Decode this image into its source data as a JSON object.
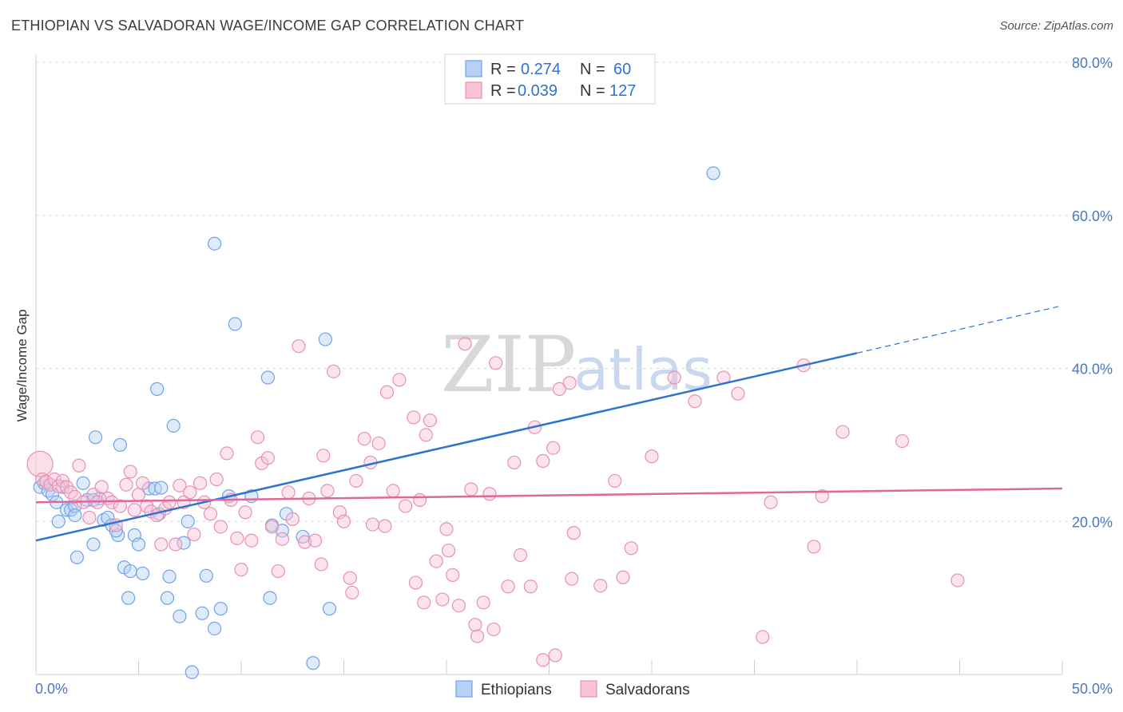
{
  "title": "ETHIOPIAN VS SALVADORAN WAGE/INCOME GAP CORRELATION CHART",
  "source": "Source: ZipAtlas.com",
  "chart_data": {
    "type": "scatter",
    "ylabel": "Wage/Income Gap",
    "xlim": [
      0,
      50
    ],
    "ylim": [
      0,
      80
    ],
    "x_tick_labels": [
      "0.0%",
      "50.0%"
    ],
    "y_ticks": [
      {
        "value": 20,
        "label": "20.0%"
      },
      {
        "value": 40,
        "label": "40.0%"
      },
      {
        "value": 60,
        "label": "60.0%"
      },
      {
        "value": 80,
        "label": "80.0%"
      }
    ],
    "watermark": {
      "zip": "ZIP",
      "atlas": "atlas"
    },
    "legend": [
      {
        "r_label": "R =",
        "r": "0.274",
        "n_label": "N =",
        "n": "60"
      },
      {
        "r_label": "R =",
        "r": "0.039",
        "n_label": "N =",
        "n": "127"
      }
    ],
    "series": [
      {
        "name": "Ethiopians",
        "color": "#6fa3e8",
        "fill": "#b7d0f5",
        "line_color": "#2f73d0",
        "trend": {
          "x0": 0,
          "y0": 17.5,
          "x1": 40,
          "y1": 42.0,
          "dash_to_x": 50,
          "dash_to_y": 48.2
        },
        "points": [
          [
            0.2,
            24.5
          ],
          [
            0.4,
            25
          ],
          [
            0.6,
            24
          ],
          [
            0.8,
            23.5
          ],
          [
            1.0,
            22.5
          ],
          [
            1.1,
            20
          ],
          [
            1.3,
            24.5
          ],
          [
            1.5,
            21.5
          ],
          [
            1.7,
            21.5
          ],
          [
            1.9,
            22
          ],
          [
            2.0,
            15.3
          ],
          [
            2.3,
            25
          ],
          [
            2.5,
            22.8
          ],
          [
            2.8,
            17
          ],
          [
            2.9,
            31
          ],
          [
            3.1,
            23
          ],
          [
            3.3,
            20.2
          ],
          [
            3.5,
            20.5
          ],
          [
            3.7,
            19.5
          ],
          [
            4.0,
            18.2
          ],
          [
            4.1,
            30
          ],
          [
            4.3,
            14
          ],
          [
            4.5,
            10
          ],
          [
            4.6,
            13.5
          ],
          [
            4.8,
            18.2
          ],
          [
            5.0,
            17
          ],
          [
            5.2,
            13.2
          ],
          [
            5.5,
            24.3
          ],
          [
            5.8,
            24.3
          ],
          [
            6.0,
            21
          ],
          [
            6.4,
            10
          ],
          [
            6.5,
            12.8
          ],
          [
            6.7,
            32.5
          ],
          [
            7.0,
            7.6
          ],
          [
            7.2,
            17.2
          ],
          [
            7.4,
            20
          ],
          [
            7.6,
            0.3
          ],
          [
            8.1,
            8
          ],
          [
            8.3,
            12.9
          ],
          [
            8.7,
            6
          ],
          [
            9.0,
            8.6
          ],
          [
            9.4,
            23.3
          ],
          [
            9.7,
            45.8
          ],
          [
            10.5,
            23.3
          ],
          [
            11.4,
            10
          ],
          [
            11.5,
            19.5
          ],
          [
            12.0,
            18.8
          ],
          [
            12.2,
            21
          ],
          [
            13.0,
            18
          ],
          [
            13.5,
            1.5
          ],
          [
            14.1,
            43.8
          ],
          [
            14.3,
            8.6
          ],
          [
            8.7,
            56.3
          ],
          [
            5.9,
            37.3
          ],
          [
            11.3,
            38.8
          ],
          [
            2.8,
            22.8
          ],
          [
            6.1,
            24.4
          ],
          [
            33.0,
            65.5
          ],
          [
            1.9,
            20.8
          ],
          [
            3.9,
            18.8
          ]
        ]
      },
      {
        "name": "Salvadorans",
        "color": "#eb8fb0",
        "fill": "#f7c4d6",
        "line_color": "#e0679a",
        "trend": {
          "x0": 0,
          "y0": 22.5,
          "x1": 50,
          "y1": 24.3
        },
        "points": [
          [
            0.2,
            27.5
          ],
          [
            0.3,
            25.5
          ],
          [
            0.5,
            25.2
          ],
          [
            0.7,
            24.8
          ],
          [
            0.9,
            25.5
          ],
          [
            1.1,
            24.6
          ],
          [
            1.3,
            25.3
          ],
          [
            1.5,
            24.5
          ],
          [
            1.7,
            23.8
          ],
          [
            1.9,
            23.2
          ],
          [
            2.1,
            27.3
          ],
          [
            2.3,
            22.5
          ],
          [
            2.6,
            20.5
          ],
          [
            2.8,
            23.5
          ],
          [
            3.0,
            22.5
          ],
          [
            3.2,
            24.5
          ],
          [
            3.5,
            23
          ],
          [
            3.7,
            22.5
          ],
          [
            3.9,
            19.5
          ],
          [
            4.1,
            22
          ],
          [
            4.4,
            24.8
          ],
          [
            4.6,
            26.5
          ],
          [
            4.8,
            21.5
          ],
          [
            5.0,
            23.5
          ],
          [
            5.2,
            25
          ],
          [
            5.4,
            22
          ],
          [
            5.6,
            21.3
          ],
          [
            5.9,
            20.8
          ],
          [
            6.1,
            17
          ],
          [
            6.3,
            21.7
          ],
          [
            6.5,
            22.5
          ],
          [
            6.8,
            17
          ],
          [
            7.0,
            24.7
          ],
          [
            7.2,
            22.5
          ],
          [
            7.5,
            23.8
          ],
          [
            7.7,
            18.3
          ],
          [
            8.0,
            25
          ],
          [
            8.2,
            22.5
          ],
          [
            8.5,
            21
          ],
          [
            8.8,
            25.5
          ],
          [
            9.0,
            19.3
          ],
          [
            9.3,
            28.9
          ],
          [
            9.5,
            22.8
          ],
          [
            9.8,
            17.8
          ],
          [
            10.0,
            13.7
          ],
          [
            10.2,
            21.2
          ],
          [
            10.5,
            17.5
          ],
          [
            10.8,
            31
          ],
          [
            11.0,
            27.6
          ],
          [
            11.3,
            28.3
          ],
          [
            11.5,
            19.3
          ],
          [
            11.8,
            13.5
          ],
          [
            12.0,
            17.7
          ],
          [
            12.3,
            23.8
          ],
          [
            12.5,
            20.3
          ],
          [
            12.8,
            42.9
          ],
          [
            13.1,
            17.3
          ],
          [
            13.3,
            23
          ],
          [
            13.6,
            17.5
          ],
          [
            14.0,
            28.6
          ],
          [
            14.2,
            24
          ],
          [
            14.5,
            39.6
          ],
          [
            14.8,
            21.2
          ],
          [
            15.0,
            20
          ],
          [
            15.3,
            12.6
          ],
          [
            15.6,
            25.3
          ],
          [
            16.0,
            30.8
          ],
          [
            16.3,
            27.7
          ],
          [
            16.7,
            30.2
          ],
          [
            17.1,
            36.9
          ],
          [
            17.4,
            24
          ],
          [
            17.7,
            38.5
          ],
          [
            18.0,
            22
          ],
          [
            18.4,
            33.6
          ],
          [
            18.7,
            22.8
          ],
          [
            19.0,
            31.3
          ],
          [
            19.2,
            33.2
          ],
          [
            19.5,
            14.8
          ],
          [
            19.8,
            9.8
          ],
          [
            20.0,
            19
          ],
          [
            20.3,
            13
          ],
          [
            20.6,
            9
          ],
          [
            20.9,
            43.2
          ],
          [
            21.2,
            24.2
          ],
          [
            21.5,
            5
          ],
          [
            21.8,
            9.4
          ],
          [
            22.1,
            23.6
          ],
          [
            22.4,
            40.7
          ],
          [
            23.0,
            11.5
          ],
          [
            23.3,
            27.7
          ],
          [
            23.6,
            15.6
          ],
          [
            24.3,
            32.3
          ],
          [
            24.7,
            27.9
          ],
          [
            25.2,
            29.6
          ],
          [
            25.5,
            37.3
          ],
          [
            26.0,
            38.1
          ],
          [
            26.2,
            18.5
          ],
          [
            28.2,
            25.3
          ],
          [
            29.0,
            16.5
          ],
          [
            30.0,
            28.5
          ],
          [
            31.1,
            38.8
          ],
          [
            32.1,
            35.7
          ],
          [
            33.5,
            38.8
          ],
          [
            34.2,
            36.7
          ],
          [
            35.8,
            22.5
          ],
          [
            37.4,
            40.4
          ],
          [
            38.3,
            23.3
          ],
          [
            39.3,
            31.7
          ],
          [
            42.2,
            30.5
          ],
          [
            44.9,
            12.3
          ],
          [
            35.4,
            4.9
          ],
          [
            37.9,
            16.7
          ],
          [
            24.1,
            11.5
          ],
          [
            24.7,
            1.9
          ],
          [
            25.3,
            2.5
          ],
          [
            21.4,
            6.5
          ],
          [
            22.3,
            5.9
          ],
          [
            26.1,
            12.5
          ],
          [
            27.5,
            11.6
          ],
          [
            18.9,
            9.4
          ],
          [
            20.1,
            16.2
          ],
          [
            16.4,
            19.6
          ],
          [
            15.4,
            10.7
          ],
          [
            13.9,
            14.4
          ],
          [
            17.0,
            19.4
          ],
          [
            18.5,
            12.0
          ],
          [
            28.6,
            12.7
          ]
        ]
      }
    ]
  }
}
